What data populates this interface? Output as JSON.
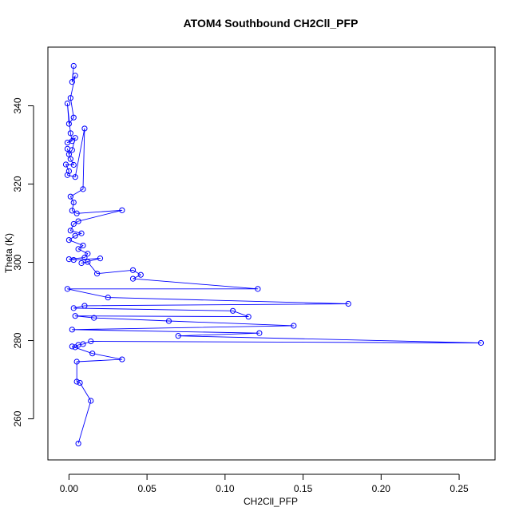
{
  "chart_data": {
    "type": "line",
    "title": "ATOM4 Southbound CH2Cll_PFP",
    "xlabel": "CH2Cll_PFP",
    "ylabel": "Theta (K)",
    "xlim": [
      -0.0135,
      0.273
    ],
    "ylim": [
      249.5,
      355
    ],
    "xticks": [
      0.0,
      0.05,
      0.1,
      0.15,
      0.2,
      0.25
    ],
    "xtick_labels": [
      "0.00",
      "0.05",
      "0.10",
      "0.15",
      "0.20",
      "0.25"
    ],
    "yticks": [
      260,
      280,
      300,
      320,
      340
    ],
    "ytick_labels": [
      "260",
      "280",
      "300",
      "320",
      "340"
    ],
    "grid": false,
    "series": [
      {
        "color": "#0000ff",
        "marker": "open-circle",
        "points": [
          [
            0.003,
            350.2
          ],
          [
            0.002,
            346.1
          ],
          [
            0.004,
            347.7
          ],
          [
            0.001,
            342.0
          ],
          [
            0.003,
            337.0
          ],
          [
            0.0,
            335.4
          ],
          [
            -0.001,
            340.6
          ],
          [
            0.001,
            333.0
          ],
          [
            0.002,
            331.0
          ],
          [
            -0.001,
            330.6
          ],
          [
            0.004,
            331.8
          ],
          [
            0.002,
            328.7
          ],
          [
            0.0,
            327.6
          ],
          [
            -0.001,
            329.0
          ],
          [
            0.001,
            326.4
          ],
          [
            0.003,
            324.9
          ],
          [
            -0.002,
            325.0
          ],
          [
            0.0,
            323.3
          ],
          [
            -0.001,
            322.3
          ],
          [
            0.004,
            321.8
          ],
          [
            0.01,
            334.2
          ],
          [
            0.009,
            318.7
          ],
          [
            0.001,
            316.8
          ],
          [
            0.003,
            315.3
          ],
          [
            0.002,
            313.2
          ],
          [
            0.005,
            312.5
          ],
          [
            0.034,
            313.3
          ],
          [
            0.006,
            310.5
          ],
          [
            0.003,
            309.8
          ],
          [
            0.001,
            308.1
          ],
          [
            0.008,
            307.4
          ],
          [
            0.004,
            306.8
          ],
          [
            0.0,
            305.7
          ],
          [
            0.009,
            304.3
          ],
          [
            0.006,
            303.4
          ],
          [
            0.012,
            302.2
          ],
          [
            0.01,
            301.2
          ],
          [
            0.0,
            300.8
          ],
          [
            0.003,
            300.6
          ],
          [
            0.02,
            301.0
          ],
          [
            0.008,
            299.8
          ],
          [
            0.012,
            300.1
          ],
          [
            0.018,
            297.1
          ],
          [
            0.041,
            298.0
          ],
          [
            0.046,
            296.8
          ],
          [
            0.041,
            295.8
          ],
          [
            0.121,
            293.2
          ],
          [
            -0.001,
            293.2
          ],
          [
            0.025,
            291.0
          ],
          [
            0.179,
            289.4
          ],
          [
            0.01,
            288.9
          ],
          [
            0.003,
            288.3
          ],
          [
            0.105,
            287.6
          ],
          [
            0.115,
            286.1
          ],
          [
            0.004,
            286.3
          ],
          [
            0.016,
            285.8
          ],
          [
            0.064,
            285.0
          ],
          [
            0.144,
            283.8
          ],
          [
            0.002,
            282.8
          ],
          [
            0.122,
            281.9
          ],
          [
            0.07,
            281.2
          ],
          [
            0.264,
            279.4
          ],
          [
            0.014,
            279.8
          ],
          [
            0.009,
            279.1
          ],
          [
            0.006,
            278.9
          ],
          [
            0.004,
            278.3
          ],
          [
            0.002,
            278.5
          ],
          [
            0.015,
            276.7
          ],
          [
            0.034,
            275.2
          ],
          [
            0.005,
            274.6
          ],
          [
            0.005,
            269.5
          ],
          [
            0.007,
            269.2
          ],
          [
            0.014,
            264.6
          ],
          [
            0.006,
            253.7
          ]
        ]
      }
    ]
  }
}
